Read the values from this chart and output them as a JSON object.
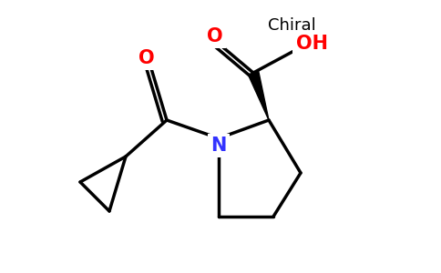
{
  "background_color": "#ffffff",
  "chiral_label": "Chiral",
  "chiral_fontsize": 13,
  "atom_N": {
    "label": "N",
    "color": "#3333ff",
    "fontsize": 15
  },
  "atom_O_amide": {
    "label": "O",
    "color": "#ff0000",
    "fontsize": 15
  },
  "atom_O_acid": {
    "label": "O",
    "color": "#ff0000",
    "fontsize": 15
  },
  "atom_OH": {
    "label": "OH",
    "color": "#ff0000",
    "fontsize": 15
  },
  "line_width": 2.5,
  "bond_color": "#000000",
  "fig_w": 4.84,
  "fig_h": 3.0,
  "dpi": 100
}
